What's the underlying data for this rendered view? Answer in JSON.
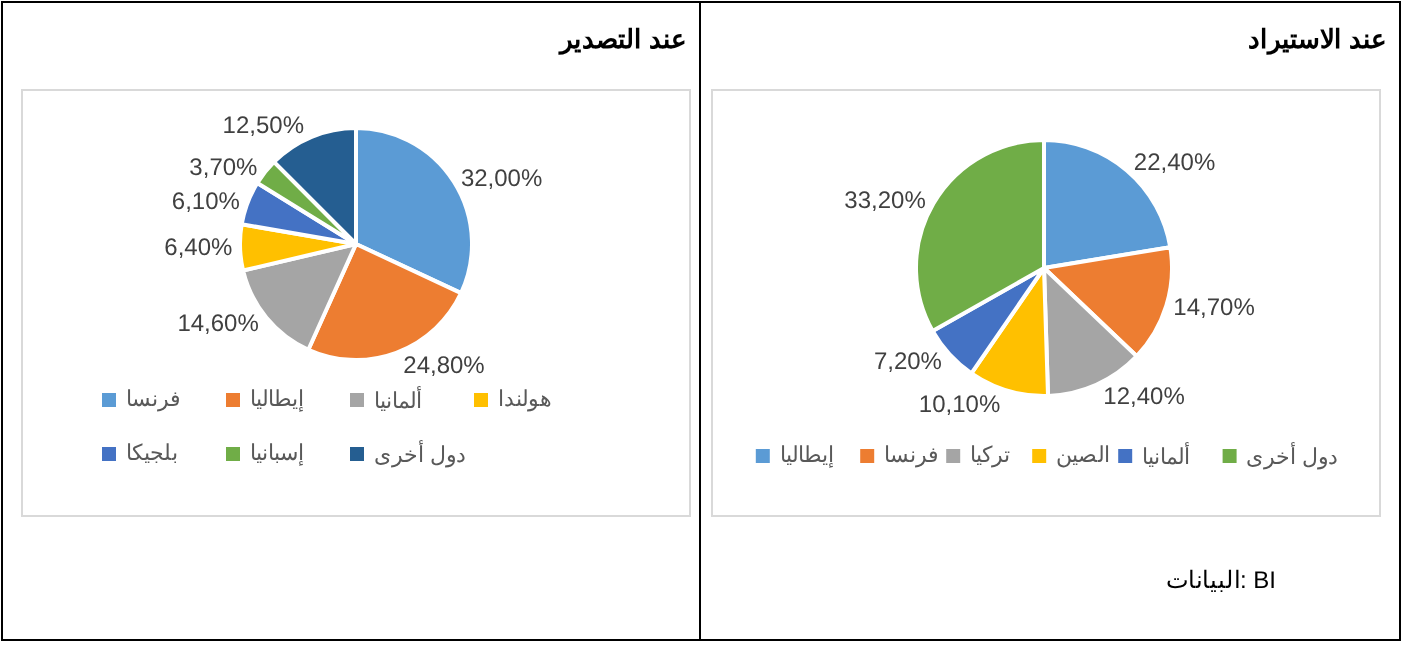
{
  "chart_data": [
    {
      "type": "pie",
      "title": "عند التصدير",
      "categories": [
        "فرنسا",
        "إيطاليا",
        "ألمانيا",
        "هولندا",
        "بلجيكا",
        "إسبانيا",
        "دول أخرى"
      ],
      "values": [
        32.0,
        24.8,
        14.6,
        6.4,
        6.1,
        3.7,
        12.5
      ],
      "value_labels": [
        "32,00%",
        "24,80%",
        "14,60%",
        "6,40%",
        "6,10%",
        "3,70%",
        "12,50%"
      ],
      "colors": [
        "#5b9bd5",
        "#ed7d31",
        "#a5a5a5",
        "#ffc000",
        "#4472c4",
        "#70ad47",
        "#255e91"
      ],
      "legend": "bottom"
    },
    {
      "type": "pie",
      "title": "عند الاستيراد",
      "categories": [
        "إيطاليا",
        "فرنسا",
        "تركيا",
        "الصين",
        "ألمانيا",
        "دول أخرى"
      ],
      "values": [
        22.4,
        14.7,
        12.4,
        10.1,
        7.2,
        33.2
      ],
      "value_labels": [
        "22,40%",
        "14,70%",
        "12,40%",
        "10,10%",
        "7,20%",
        "33,20%"
      ],
      "colors": [
        "#5b9bd5",
        "#ed7d31",
        "#a5a5a5",
        "#ffc000",
        "#4472c4",
        "#70ad47"
      ],
      "legend": "bottom",
      "annotations": [
        "البيانات: BI"
      ]
    }
  ]
}
